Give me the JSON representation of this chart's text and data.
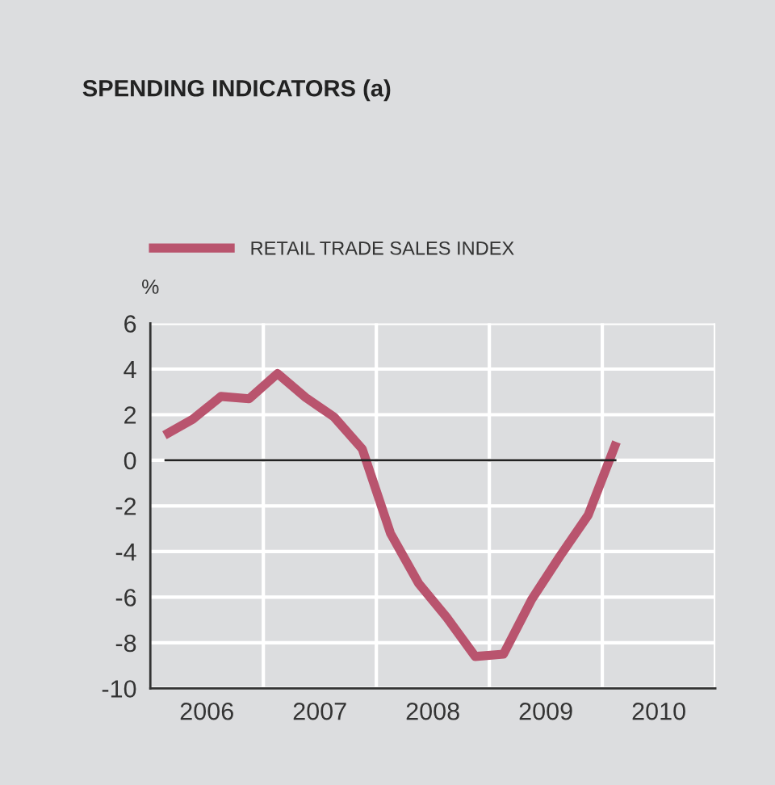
{
  "chart_data": {
    "type": "line",
    "title": "SPENDING INDICATORS (a)",
    "ylabel": "%",
    "x": [
      2006.125,
      2006.375,
      2006.625,
      2006.875,
      2007.125,
      2007.375,
      2007.625,
      2007.875,
      2008.125,
      2008.375,
      2008.625,
      2008.875,
      2009.125,
      2009.375,
      2009.625,
      2009.875,
      2010.125
    ],
    "series": [
      {
        "name": "RETAIL TRADE SALES INDEX",
        "color": "#b9546e",
        "values": [
          1.1,
          1.8,
          2.8,
          2.7,
          3.8,
          2.75,
          1.9,
          0.5,
          -3.2,
          -5.4,
          -6.9,
          -8.6,
          -8.5,
          -6.1,
          -4.2,
          -2.4,
          0.8
        ]
      }
    ],
    "xlim": [
      2006,
      2011
    ],
    "xticks": [
      {
        "value": 2006.5,
        "label": "2006"
      },
      {
        "value": 2007,
        "label": null
      },
      {
        "value": 2007.5,
        "label": "2007"
      },
      {
        "value": 2008,
        "label": null
      },
      {
        "value": 2008.5,
        "label": "2008"
      },
      {
        "value": 2009,
        "label": null
      },
      {
        "value": 2009.5,
        "label": "2009"
      },
      {
        "value": 2010,
        "label": null
      },
      {
        "value": 2010.5,
        "label": "2010"
      },
      {
        "value": 2011,
        "label": null
      }
    ],
    "ylim": [
      -10,
      6
    ],
    "yticks": [
      -10,
      -8,
      -6,
      -4,
      -2,
      0,
      2,
      4,
      6
    ],
    "ref_lines": [
      {
        "axis": "y",
        "value": 0,
        "color": "#222222"
      }
    ],
    "grid": true,
    "legend": "top left",
    "marker": "none",
    "line_style": "solid"
  }
}
